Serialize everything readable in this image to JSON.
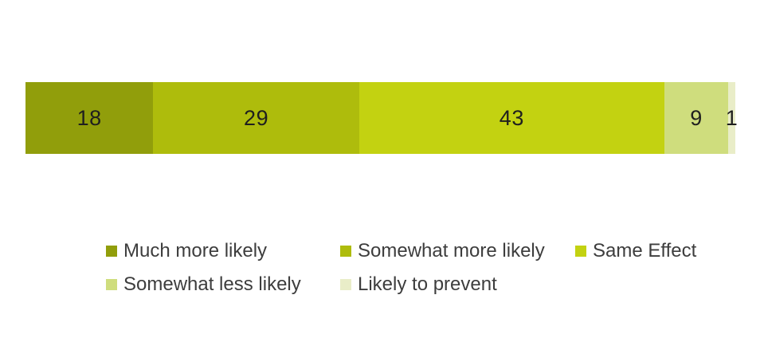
{
  "chart_data": {
    "type": "bar",
    "variant": "horizontal-stacked-single-bar",
    "title": "",
    "xlabel": "",
    "ylabel": "",
    "axes_visible": false,
    "grid": false,
    "total": 100,
    "value_label_color": "#1f1f1f",
    "legend_position": "bottom",
    "legend_text_color": "#3d3d3d",
    "background_color": "#ffffff",
    "segments": [
      {
        "label": "Much more likely",
        "value": 18,
        "color": "#919e0b"
      },
      {
        "label": "Somewhat more likely",
        "value": 29,
        "color": "#aebc0c"
      },
      {
        "label": "Same Effect",
        "value": 43,
        "color": "#c3d211"
      },
      {
        "label": "Somewhat less likely",
        "value": 9,
        "color": "#cfdd7d"
      },
      {
        "label": "Likely to prevent",
        "value": 1,
        "color": "#e9edc8"
      }
    ]
  }
}
